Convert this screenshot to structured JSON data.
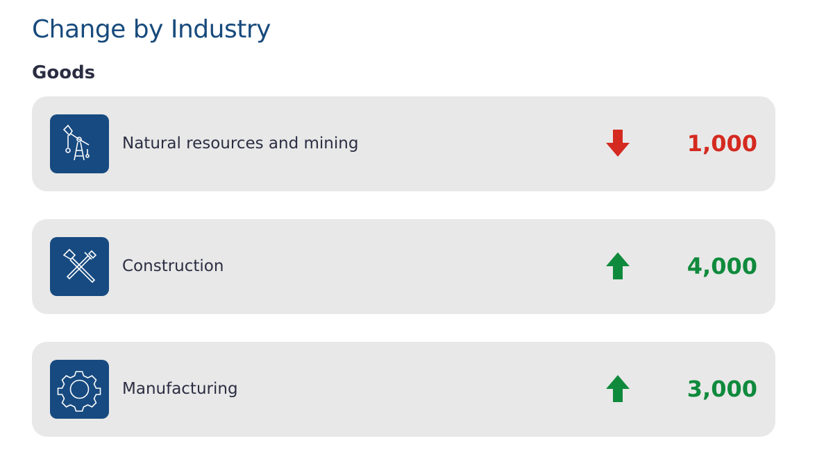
{
  "header": {
    "title": "Change by Industry"
  },
  "section": {
    "title": "Goods"
  },
  "items": [
    {
      "label": "Natural resources and mining",
      "value": "1,000",
      "direction": "down"
    },
    {
      "label": "Construction",
      "value": "4,000",
      "direction": "up"
    },
    {
      "label": "Manufacturing",
      "value": "3,000",
      "direction": "up"
    }
  ]
}
